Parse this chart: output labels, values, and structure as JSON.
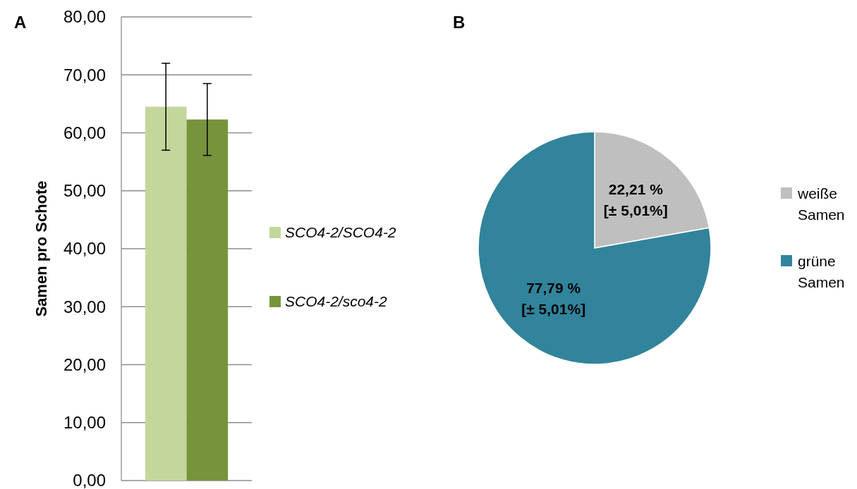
{
  "chart_data": [
    {
      "type": "bar",
      "title": "A",
      "ylabel": "Samen pro Schote",
      "categories": [
        null
      ],
      "series": [
        {
          "name": "SCO4-2/SCO4-2",
          "color": "#c3d69b",
          "values": [
            64.5
          ],
          "errors": [
            7.5
          ]
        },
        {
          "name": "SCO4-2/sco4-2",
          "color": "#77933c",
          "values": [
            62.3
          ],
          "errors": [
            6.2
          ]
        }
      ],
      "ylim": [
        0,
        80
      ],
      "yticks": [
        {
          "value": 0,
          "label": "0,00"
        },
        {
          "value": 10,
          "label": "10,00"
        },
        {
          "value": 20,
          "label": "20,00"
        },
        {
          "value": 30,
          "label": "30,00"
        },
        {
          "value": 40,
          "label": "40,00"
        },
        {
          "value": 50,
          "label": "50,00"
        },
        {
          "value": 60,
          "label": "60,00"
        },
        {
          "value": 70,
          "label": "70,00"
        },
        {
          "value": 80,
          "label": "80,00"
        }
      ],
      "grid": "y",
      "legend": "right"
    },
    {
      "type": "pie",
      "title": "B",
      "categories": [
        "weiße Samen",
        "grüne Samen"
      ],
      "values": [
        22.21,
        77.79
      ],
      "colors": [
        "#bfbfbf",
        "#31849b"
      ],
      "value_labels": [
        "22,21 %\n[± 5,01%]",
        "77,79 %\n[± 5,01%]"
      ],
      "legend": "right"
    }
  ]
}
